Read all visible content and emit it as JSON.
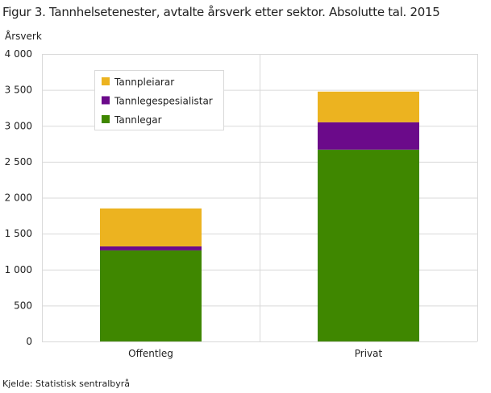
{
  "chart_data": {
    "type": "bar",
    "stacked": true,
    "title": "Figur 3. Tannhelsetenester, avtalte årsverk etter sektor. Absolutte tal. 2015",
    "ylabel": "Årsverk",
    "xlabel": "",
    "ylim": [
      0,
      4000
    ],
    "yticks": [
      0,
      500,
      1000,
      1500,
      2000,
      2500,
      3000,
      3500,
      4000
    ],
    "ytick_labels": [
      "0",
      "500",
      "1 000",
      "1 500",
      "2 000",
      "2 500",
      "3 000",
      "3 500",
      "4 000"
    ],
    "categories": [
      "Offentleg",
      "Privat"
    ],
    "series": [
      {
        "name": "Tannlegar",
        "color": "#3f8700",
        "values": [
          1267,
          2669
        ]
      },
      {
        "name": "Tannlegespesialistar",
        "color": "#6b0a8a",
        "values": [
          56,
          381
        ]
      },
      {
        "name": "Tannpleiarar",
        "color": "#ecb320",
        "values": [
          528,
          426
        ]
      }
    ],
    "legend_order": [
      "Tannpleiarar",
      "Tannlegespesialistar",
      "Tannlegar"
    ],
    "legend_position": "top-left",
    "grid": true,
    "source": "Kjelde: Statistisk sentralbyrå"
  }
}
